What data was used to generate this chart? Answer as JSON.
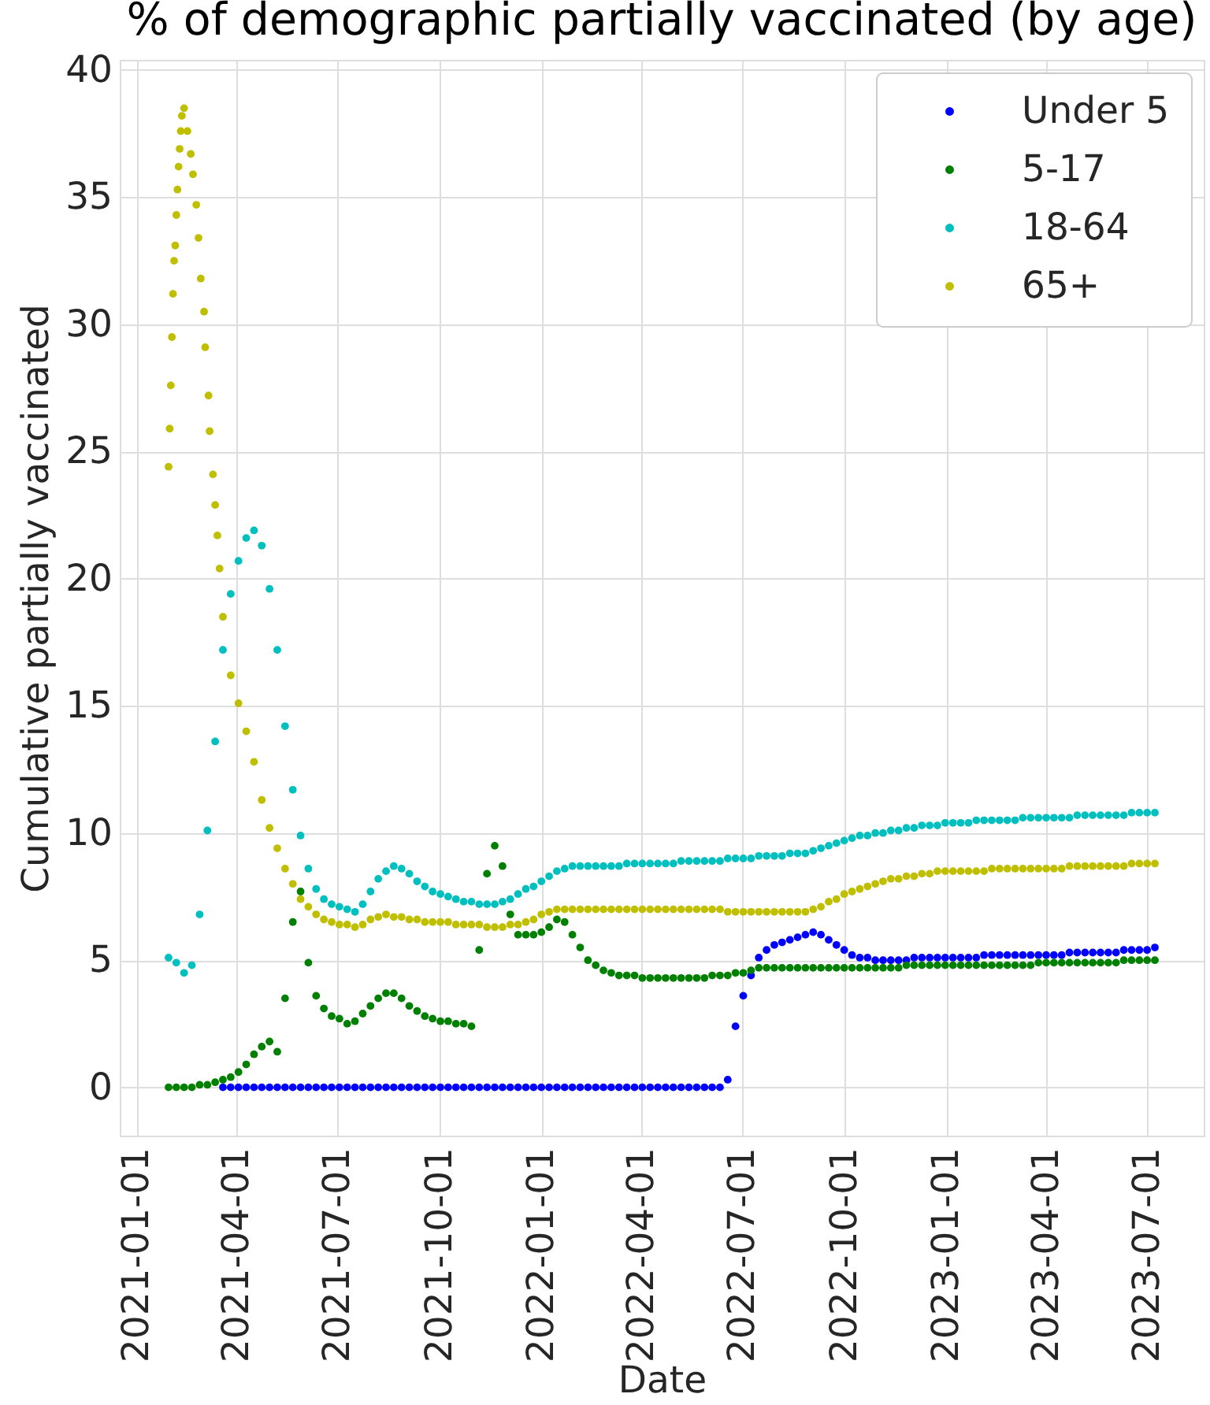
{
  "chart_data": {
    "type": "scatter",
    "title": "% of demographic partially vaccinated (by age)",
    "xlabel": "Date",
    "ylabel": "Cumulative partially vaccinated",
    "x": [
      "2021-01-30",
      "2021-02-06",
      "2021-02-13",
      "2021-02-20",
      "2021-02-27",
      "2021-03-06",
      "2021-03-13",
      "2021-03-20",
      "2021-03-27",
      "2021-04-03",
      "2021-04-10",
      "2021-04-17",
      "2021-04-24",
      "2021-05-01",
      "2021-05-08",
      "2021-05-15",
      "2021-05-22",
      "2021-05-29",
      "2021-06-05",
      "2021-06-12",
      "2021-06-19",
      "2021-06-26",
      "2021-07-03",
      "2021-07-10",
      "2021-07-17",
      "2021-07-24",
      "2021-07-31",
      "2021-08-07",
      "2021-08-14",
      "2021-08-21",
      "2021-08-28",
      "2021-09-04",
      "2021-09-11",
      "2021-09-18",
      "2021-09-25",
      "2021-10-02",
      "2021-10-09",
      "2021-10-16",
      "2021-10-23",
      "2021-10-30",
      "2021-11-06",
      "2021-11-13",
      "2021-11-20",
      "2021-11-27",
      "2021-12-04",
      "2021-12-11",
      "2021-12-18",
      "2021-12-25",
      "2022-01-01",
      "2022-01-08",
      "2022-01-15",
      "2022-01-22",
      "2022-01-29",
      "2022-02-05",
      "2022-02-12",
      "2022-02-19",
      "2022-02-26",
      "2022-03-05",
      "2022-03-12",
      "2022-03-19",
      "2022-03-26",
      "2022-04-02",
      "2022-04-09",
      "2022-04-16",
      "2022-04-23",
      "2022-04-30",
      "2022-05-07",
      "2022-05-14",
      "2022-05-21",
      "2022-05-28",
      "2022-06-04",
      "2022-06-11",
      "2022-06-18",
      "2022-06-25",
      "2022-07-02",
      "2022-07-09",
      "2022-07-16",
      "2022-07-23",
      "2022-07-30",
      "2022-08-06",
      "2022-08-13",
      "2022-08-20",
      "2022-08-27",
      "2022-09-03",
      "2022-09-10",
      "2022-09-17",
      "2022-09-24",
      "2022-10-01",
      "2022-10-08",
      "2022-10-15",
      "2022-10-22",
      "2022-10-29",
      "2022-11-05",
      "2022-11-12",
      "2022-11-19",
      "2022-11-26",
      "2022-12-03",
      "2022-12-10",
      "2022-12-17",
      "2022-12-24",
      "2022-12-31",
      "2023-01-07",
      "2023-01-14",
      "2023-01-21",
      "2023-01-28",
      "2023-02-04",
      "2023-02-11",
      "2023-02-18",
      "2023-02-25",
      "2023-03-04",
      "2023-03-11",
      "2023-03-18",
      "2023-03-25",
      "2023-04-01",
      "2023-04-08",
      "2023-04-15",
      "2023-04-22",
      "2023-04-29",
      "2023-05-06",
      "2023-05-13",
      "2023-05-20",
      "2023-05-27",
      "2023-06-03",
      "2023-06-10",
      "2023-06-17",
      "2023-06-24",
      "2023-07-01",
      "2023-07-08"
    ],
    "series": [
      {
        "name": "Under 5",
        "color": "#0000ff",
        "values": [
          null,
          null,
          null,
          null,
          null,
          null,
          null,
          0,
          0,
          0,
          0,
          0,
          0,
          0,
          0,
          0,
          0,
          0,
          0,
          0,
          0,
          0,
          0,
          0,
          0,
          0,
          0,
          0,
          0,
          0,
          0,
          0,
          0,
          0,
          0,
          0,
          0,
          0,
          0,
          0,
          0,
          0,
          0,
          0,
          0,
          0,
          0,
          0,
          0,
          0,
          0,
          0,
          0,
          0,
          0,
          0,
          0,
          0,
          0,
          0,
          0,
          0,
          0,
          0,
          0,
          0,
          0,
          0,
          0,
          0,
          0,
          0,
          0.3,
          2.4,
          3.6,
          4.4,
          5.1,
          5.4,
          5.6,
          5.7,
          5.8,
          5.9,
          6.0,
          6.1,
          6.0,
          5.8,
          5.6,
          5.4,
          5.2,
          5.1,
          5.1,
          5.0,
          5.0,
          5.0,
          5.0,
          5.0,
          5.1,
          5.1,
          5.1,
          5.1,
          5.1,
          5.1,
          5.1,
          5.1,
          5.1,
          5.2,
          5.2,
          5.2,
          5.2,
          5.2,
          5.2,
          5.2,
          5.2,
          5.2,
          5.2,
          5.2,
          5.3,
          5.3,
          5.3,
          5.3,
          5.3,
          5.3,
          5.3,
          5.4,
          5.4,
          5.4,
          5.4,
          5.5
        ]
      },
      {
        "name": "5-17",
        "color": "#008000",
        "values": [
          0.0,
          0.0,
          0.0,
          0.0,
          0.1,
          0.1,
          0.2,
          0.3,
          0.4,
          0.6,
          0.9,
          1.3,
          1.6,
          1.8,
          1.4,
          3.5,
          6.5,
          7.7,
          4.9,
          3.6,
          3.1,
          2.8,
          2.7,
          2.5,
          2.6,
          2.9,
          3.2,
          3.5,
          3.7,
          3.7,
          3.5,
          3.2,
          3.0,
          2.8,
          2.7,
          2.6,
          2.6,
          2.5,
          2.5,
          2.4,
          5.4,
          8.4,
          9.5,
          8.7,
          6.8,
          6.0,
          6.0,
          6.0,
          6.1,
          6.3,
          6.6,
          6.5,
          6.0,
          5.5,
          5.0,
          4.8,
          4.6,
          4.5,
          4.4,
          4.4,
          4.4,
          4.3,
          4.3,
          4.3,
          4.3,
          4.3,
          4.3,
          4.3,
          4.3,
          4.3,
          4.4,
          4.4,
          4.4,
          4.5,
          4.5,
          4.6,
          4.7,
          4.7,
          4.7,
          4.7,
          4.7,
          4.7,
          4.7,
          4.7,
          4.7,
          4.7,
          4.7,
          4.7,
          4.7,
          4.7,
          4.7,
          4.7,
          4.7,
          4.7,
          4.7,
          4.8,
          4.8,
          4.8,
          4.8,
          4.8,
          4.8,
          4.8,
          4.8,
          4.8,
          4.8,
          4.8,
          4.8,
          4.8,
          4.8,
          4.8,
          4.8,
          4.8,
          4.9,
          4.9,
          4.9,
          4.9,
          4.9,
          4.9,
          4.9,
          4.9,
          4.9,
          4.9,
          4.9,
          5.0,
          5.0,
          5.0,
          5.0,
          5.0
        ]
      },
      {
        "name": "18-64",
        "color": "#00bfbf",
        "values": [
          5.1,
          4.9,
          4.5,
          4.8,
          6.8,
          10.1,
          13.6,
          17.2,
          19.4,
          20.7,
          21.6,
          21.9,
          21.3,
          19.6,
          17.2,
          14.2,
          11.7,
          9.9,
          8.6,
          7.8,
          7.4,
          7.2,
          7.1,
          7.0,
          6.9,
          7.2,
          7.7,
          8.2,
          8.5,
          8.7,
          8.6,
          8.4,
          8.1,
          7.9,
          7.7,
          7.6,
          7.5,
          7.4,
          7.3,
          7.3,
          7.2,
          7.2,
          7.2,
          7.3,
          7.4,
          7.6,
          7.8,
          7.9,
          8.1,
          8.3,
          8.5,
          8.6,
          8.7,
          8.7,
          8.7,
          8.7,
          8.7,
          8.7,
          8.7,
          8.8,
          8.8,
          8.8,
          8.8,
          8.8,
          8.8,
          8.8,
          8.9,
          8.9,
          8.9,
          8.9,
          8.9,
          8.9,
          9.0,
          9.0,
          9.0,
          9.0,
          9.1,
          9.1,
          9.1,
          9.1,
          9.2,
          9.2,
          9.2,
          9.3,
          9.4,
          9.5,
          9.6,
          9.7,
          9.8,
          9.9,
          9.9,
          10.0,
          10.0,
          10.1,
          10.1,
          10.2,
          10.2,
          10.3,
          10.3,
          10.3,
          10.4,
          10.4,
          10.4,
          10.4,
          10.5,
          10.5,
          10.5,
          10.5,
          10.5,
          10.5,
          10.6,
          10.6,
          10.6,
          10.6,
          10.6,
          10.6,
          10.6,
          10.7,
          10.7,
          10.7,
          10.7,
          10.7,
          10.7,
          10.7,
          10.8,
          10.8,
          10.8,
          10.8
        ]
      },
      {
        "name": "65+",
        "color": "#bfbf00",
        "x": [
          "2021-01-30",
          "2021-01-31",
          "2021-02-01",
          "2021-02-02",
          "2021-02-03",
          "2021-02-04",
          "2021-02-05",
          "2021-02-06",
          "2021-02-07",
          "2021-02-08",
          "2021-02-09",
          "2021-02-10",
          "2021-02-11",
          "2021-02-13",
          "2021-02-16",
          "2021-02-19",
          "2021-02-21",
          "2021-02-24",
          "2021-02-26",
          "2021-02-28",
          "2021-03-03",
          "2021-03-04",
          "2021-03-07",
          "2021-03-08",
          "2021-03-11",
          "2021-03-13",
          "2021-03-15",
          "2021-03-17",
          "2021-03-20",
          "2021-03-27",
          "2021-04-03",
          "2021-04-10",
          "2021-04-17",
          "2021-04-24",
          "2021-05-01",
          "2021-05-08",
          "2021-05-15",
          "2021-05-22",
          "2021-05-29",
          "2021-06-05",
          "2021-06-12",
          "2021-06-19",
          "2021-06-26",
          "2021-07-03",
          "2021-07-10",
          "2021-07-17",
          "2021-07-24",
          "2021-07-31",
          "2021-08-07",
          "2021-08-14",
          "2021-08-21",
          "2021-08-28",
          "2021-09-04",
          "2021-09-11",
          "2021-09-18",
          "2021-09-25",
          "2021-10-02",
          "2021-10-09",
          "2021-10-16",
          "2021-10-23",
          "2021-10-30",
          "2021-11-06",
          "2021-11-13",
          "2021-11-20",
          "2021-11-27",
          "2021-12-04",
          "2021-12-11",
          "2021-12-18",
          "2021-12-25",
          "2022-01-01",
          "2022-01-08",
          "2022-01-15",
          "2022-01-22",
          "2022-01-29",
          "2022-02-05",
          "2022-02-12",
          "2022-02-19",
          "2022-02-26",
          "2022-03-05",
          "2022-03-12",
          "2022-03-19",
          "2022-03-26",
          "2022-04-02",
          "2022-04-09",
          "2022-04-16",
          "2022-04-23",
          "2022-04-30",
          "2022-05-07",
          "2022-05-14",
          "2022-05-21",
          "2022-05-28",
          "2022-06-04",
          "2022-06-11",
          "2022-06-18",
          "2022-06-25",
          "2022-07-02",
          "2022-07-09",
          "2022-07-16",
          "2022-07-23",
          "2022-07-30",
          "2022-08-06",
          "2022-08-13",
          "2022-08-20",
          "2022-08-27",
          "2022-09-03",
          "2022-09-10",
          "2022-09-17",
          "2022-09-24",
          "2022-10-01",
          "2022-10-08",
          "2022-10-15",
          "2022-10-22",
          "2022-10-29",
          "2022-11-05",
          "2022-11-12",
          "2022-11-19",
          "2022-11-26",
          "2022-12-03",
          "2022-12-10",
          "2022-12-17",
          "2022-12-24",
          "2022-12-31",
          "2023-01-07",
          "2023-01-14",
          "2023-01-21",
          "2023-01-28",
          "2023-02-04",
          "2023-02-11",
          "2023-02-18",
          "2023-02-25",
          "2023-03-04",
          "2023-03-11",
          "2023-03-18",
          "2023-03-25",
          "2023-04-01",
          "2023-04-08",
          "2023-04-15",
          "2023-04-22",
          "2023-04-29",
          "2023-05-06",
          "2023-05-13",
          "2023-05-20",
          "2023-05-27",
          "2023-06-03",
          "2023-06-10",
          "2023-06-17",
          "2023-06-24",
          "2023-07-01",
          "2023-07-08"
        ],
        "values": [
          24.4,
          25.9,
          27.6,
          29.5,
          31.2,
          32.5,
          33.1,
          34.3,
          35.3,
          36.2,
          36.9,
          37.6,
          38.2,
          38.5,
          37.6,
          36.7,
          35.9,
          34.7,
          33.4,
          31.8,
          30.5,
          29.1,
          27.2,
          25.8,
          24.1,
          22.9,
          21.7,
          20.4,
          18.5,
          16.2,
          15.1,
          14.0,
          12.8,
          11.3,
          10.2,
          9.4,
          8.6,
          8.0,
          7.4,
          7.1,
          6.8,
          6.6,
          6.5,
          6.4,
          6.4,
          6.3,
          6.4,
          6.6,
          6.7,
          6.8,
          6.7,
          6.7,
          6.6,
          6.6,
          6.5,
          6.5,
          6.5,
          6.5,
          6.4,
          6.4,
          6.4,
          6.4,
          6.3,
          6.3,
          6.3,
          6.4,
          6.4,
          6.5,
          6.6,
          6.8,
          6.9,
          7.0,
          7.0,
          7.0,
          7.0,
          7.0,
          7.0,
          7.0,
          7.0,
          7.0,
          7.0,
          7.0,
          7.0,
          7.0,
          7.0,
          7.0,
          7.0,
          7.0,
          7.0,
          7.0,
          7.0,
          7.0,
          7.0,
          6.9,
          6.9,
          6.9,
          6.9,
          6.9,
          6.9,
          6.9,
          6.9,
          6.9,
          6.9,
          6.9,
          7.0,
          7.1,
          7.3,
          7.4,
          7.6,
          7.7,
          7.8,
          7.9,
          8.0,
          8.1,
          8.2,
          8.2,
          8.3,
          8.3,
          8.4,
          8.4,
          8.5,
          8.5,
          8.5,
          8.5,
          8.5,
          8.5,
          8.5,
          8.6,
          8.6,
          8.6,
          8.6,
          8.6,
          8.6,
          8.6,
          8.6,
          8.6,
          8.6,
          8.7,
          8.7,
          8.7,
          8.7,
          8.7,
          8.7,
          8.7,
          8.7,
          8.8,
          8.8,
          8.8,
          8.8
        ]
      }
    ],
    "xlim": [
      "2020-12-17",
      "2023-08-21"
    ],
    "xticks": [
      "2021-01-01",
      "2021-04-01",
      "2021-07-01",
      "2021-10-01",
      "2022-01-01",
      "2022-04-01",
      "2022-07-01",
      "2022-10-01",
      "2023-01-01",
      "2023-04-01",
      "2023-07-01"
    ],
    "ylim": [
      -1.9,
      40.4
    ],
    "yticks": [
      0,
      5,
      10,
      15,
      20,
      25,
      30,
      35,
      40
    ],
    "grid": true,
    "legend": "top right",
    "marker": "circle"
  }
}
